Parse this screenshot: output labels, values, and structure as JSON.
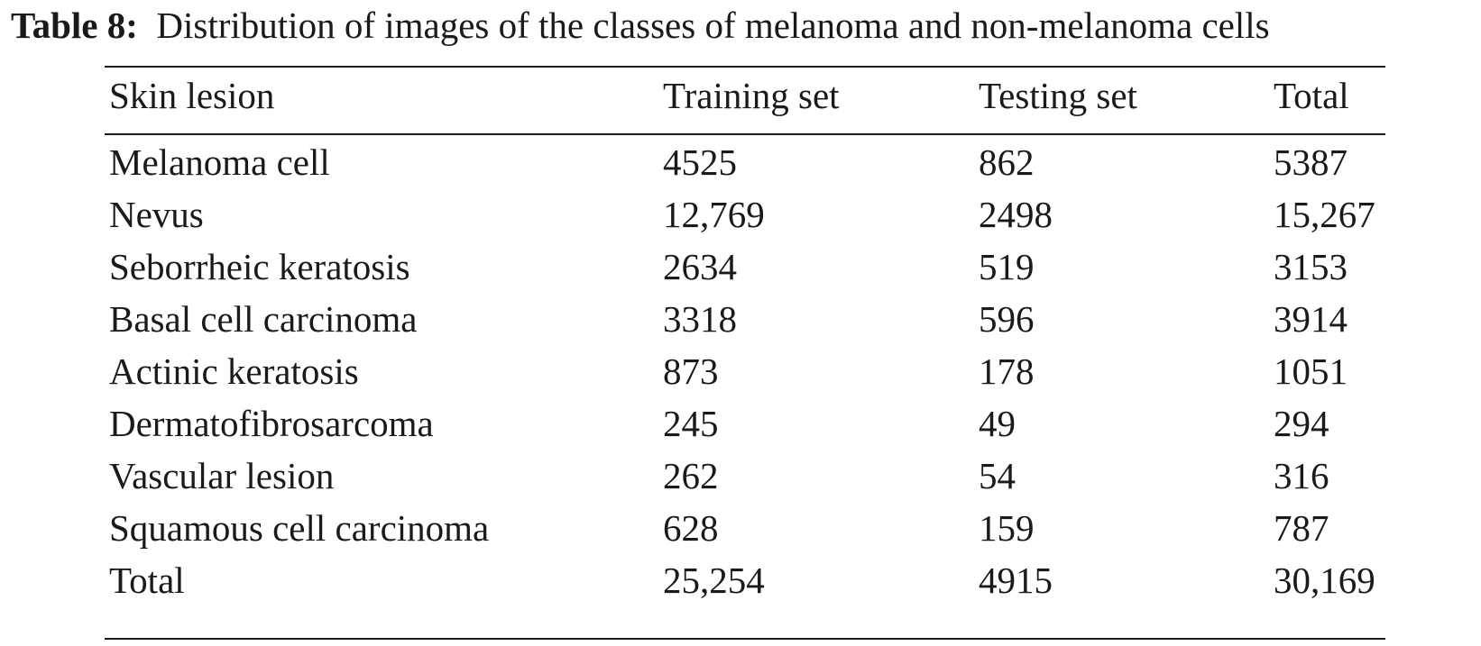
{
  "caption": {
    "label": "Table 8:",
    "text": "Distribution of images of the classes of melanoma and non-melanoma cells"
  },
  "table": {
    "headers": [
      "Skin lesion",
      "Training set",
      "Testing set",
      "Total"
    ],
    "rows": [
      [
        "Melanoma cell",
        "4525",
        "862",
        "5387"
      ],
      [
        "Nevus",
        "12,769",
        "2498",
        "15,267"
      ],
      [
        "Seborrheic keratosis",
        "2634",
        "519",
        "3153"
      ],
      [
        "Basal cell carcinoma",
        "3318",
        "596",
        "3914"
      ],
      [
        "Actinic keratosis",
        "873",
        "178",
        "1051"
      ],
      [
        "Dermatofibrosarcoma",
        "245",
        "49",
        "294"
      ],
      [
        "Vascular lesion",
        "262",
        "54",
        "316"
      ],
      [
        "Squamous cell carcinoma",
        "628",
        "159",
        "787"
      ],
      [
        "Total",
        "25,254",
        "4915",
        "30,169"
      ]
    ]
  }
}
